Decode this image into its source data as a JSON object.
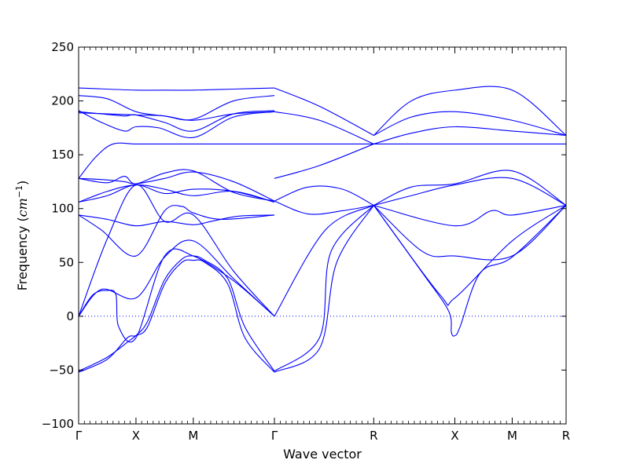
{
  "chart_data": {
    "type": "line",
    "xlabel": "Wave vector",
    "ylabel_main": "Frequency (",
    "ylabel_unit": "cm",
    "ylabel_exp": "−1",
    "ylabel_close": ")",
    "ylim": [
      -100,
      250
    ],
    "yticks": [
      -100,
      -50,
      0,
      50,
      100,
      150,
      200,
      250
    ],
    "ytick_labels": [
      "−100",
      "−50",
      "0",
      "50",
      "100",
      "150",
      "200",
      "250"
    ],
    "grid": false,
    "zero_line": true,
    "line_color": "#0000ff",
    "zero_line_color": "#0000ff",
    "xlim": [
      0,
      8.5
    ],
    "x_ticks": [
      {
        "x": 0,
        "label": "Γ"
      },
      {
        "x": 1,
        "label": "X"
      },
      {
        "x": 2,
        "label": "M"
      },
      {
        "x": 3.414,
        "label": "Γ"
      },
      {
        "x": 5.146,
        "label": "R"
      },
      {
        "x": 6.56,
        "label": "X"
      },
      {
        "x": 7.56,
        "label": "M"
      },
      {
        "x": 8.5,
        "label": "R"
      }
    ],
    "series": [
      {
        "x": [
          0,
          0.5,
          1,
          1.5,
          2,
          2.7,
          3.414
        ],
        "y": [
          212,
          211,
          210,
          210,
          210,
          211,
          212
        ]
      },
      {
        "x": [
          0,
          0.5,
          1,
          1.5,
          2,
          2.7,
          3.414
        ],
        "y": [
          205,
          202,
          190,
          186,
          183,
          200,
          205
        ]
      },
      {
        "x": [
          0,
          0.4,
          0.8,
          1,
          1.4,
          2,
          2.7,
          3.414
        ],
        "y": [
          191,
          180,
          172,
          176,
          175,
          166,
          185,
          190
        ]
      },
      {
        "x": [
          0,
          0.4,
          0.8,
          1,
          1.5,
          2,
          2.7,
          3.414
        ],
        "y": [
          190,
          188,
          186,
          187,
          180,
          172,
          188,
          191
        ]
      },
      {
        "x": [
          0,
          0.5,
          1,
          1.5,
          2,
          2.7,
          3.414
        ],
        "y": [
          189,
          188,
          187,
          186,
          182,
          188,
          190
        ]
      },
      {
        "x": [
          0,
          0.3,
          0.6,
          1,
          1.5,
          2,
          3.414
        ],
        "y": [
          128,
          148,
          160,
          160,
          160,
          160,
          160
        ]
      },
      {
        "x": [
          0,
          0.4,
          0.8,
          1,
          1.5,
          2,
          2.7,
          3.414
        ],
        "y": [
          128,
          127,
          125,
          123,
          128,
          134,
          125,
          107
        ]
      },
      {
        "x": [
          0,
          0.5,
          0.8,
          1,
          1.5,
          2,
          2.7,
          3.414
        ],
        "y": [
          128,
          124,
          130,
          123,
          133,
          135,
          115,
          107
        ]
      },
      {
        "x": [
          0,
          0.5,
          1,
          1.5,
          2,
          2.7,
          3.414
        ],
        "y": [
          106,
          112,
          122,
          114,
          118,
          116,
          106
        ]
      },
      {
        "x": [
          0,
          0.5,
          1,
          1.5,
          2,
          2.7,
          3.414
        ],
        "y": [
          106,
          116,
          122,
          118,
          112,
          116,
          106
        ]
      },
      {
        "x": [
          0,
          0.5,
          1,
          1.5,
          2,
          2.3,
          2.8,
          3.414
        ],
        "y": [
          94,
          90,
          84,
          88,
          85,
          88,
          93,
          94
        ]
      },
      {
        "x": [
          0,
          0.4,
          1,
          1.5,
          1.8,
          2,
          2.5,
          3.414
        ],
        "y": [
          94,
          80,
          56,
          98,
          102,
          96,
          90,
          94
        ]
      },
      {
        "x": [
          0,
          0.5,
          1,
          1.5,
          2,
          2.7,
          3.414
        ],
        "y": [
          0,
          72,
          122,
          88,
          94,
          42,
          0
        ]
      },
      {
        "x": [
          0,
          0.4,
          1,
          1.5,
          2,
          2.7,
          3.414
        ],
        "y": [
          0,
          25,
          17,
          55,
          70,
          35,
          0
        ]
      },
      {
        "x": [
          0,
          0.25,
          0.5,
          0.65,
          0.7,
          1,
          1.5,
          2,
          2.7,
          3.414
        ],
        "y": [
          0,
          20,
          24,
          20,
          -10,
          -20,
          56,
          56,
          33,
          0
        ]
      },
      {
        "x": [
          0,
          0.5,
          0.85,
          1,
          1.2,
          1.5,
          1.8,
          2,
          2.2,
          2.6,
          2.9,
          3.414
        ],
        "y": [
          -52,
          -40,
          -20,
          -18,
          -10,
          30,
          50,
          52,
          50,
          30,
          -20,
          -52
        ]
      },
      {
        "x": [
          0,
          0.5,
          0.9,
          1,
          1.2,
          1.5,
          1.8,
          2,
          2.2,
          2.6,
          2.9,
          3.414
        ],
        "y": [
          -51,
          -38,
          -22,
          -18,
          -5,
          34,
          53,
          56,
          52,
          35,
          -10,
          -51
        ]
      },
      {
        "x": [
          3.414,
          4.2,
          4.5,
          5.146
        ],
        "y": [
          -52,
          -30,
          50,
          103
        ]
      },
      {
        "x": [
          3.414,
          4.2,
          4.4,
          5.146
        ],
        "y": [
          -51,
          -20,
          60,
          103
        ]
      },
      {
        "x": [
          3.414,
          4.3,
          5.146
        ],
        "y": [
          0,
          80,
          103
        ]
      },
      {
        "x": [
          3.414,
          4.0,
          4.6,
          5.146
        ],
        "y": [
          107,
          120,
          118,
          103
        ]
      },
      {
        "x": [
          3.414,
          4.0,
          4.6,
          5.146
        ],
        "y": [
          107,
          95,
          98,
          103
        ]
      },
      {
        "x": [
          3.414,
          4.2,
          5.146
        ],
        "y": [
          128,
          140,
          160
        ]
      },
      {
        "x": [
          3.414,
          4.2,
          5.146
        ],
        "y": [
          190,
          182,
          160
        ]
      },
      {
        "x": [
          3.414,
          4.2,
          5.146
        ],
        "y": [
          212,
          195,
          168
        ]
      },
      {
        "x": [
          3.414,
          4.2,
          5.146
        ],
        "y": [
          160,
          160,
          160
        ]
      },
      {
        "x": [
          5.146,
          5.8,
          6.56,
          7.56,
          8.5
        ],
        "y": [
          168,
          200,
          210,
          210,
          168
        ]
      },
      {
        "x": [
          5.146,
          5.8,
          6.56,
          7.56,
          8.5
        ],
        "y": [
          168,
          185,
          190,
          182,
          168
        ]
      },
      {
        "x": [
          5.146,
          5.8,
          6.56,
          7.56,
          8.5
        ],
        "y": [
          160,
          170,
          176,
          172,
          168
        ]
      },
      {
        "x": [
          5.146,
          6.56,
          7.56,
          8.5
        ],
        "y": [
          160,
          160,
          160,
          160
        ]
      },
      {
        "x": [
          5.146,
          5.8,
          6.56,
          7.56,
          8.5
        ],
        "y": [
          103,
          120,
          123,
          135,
          103
        ]
      },
      {
        "x": [
          5.146,
          5.8,
          6.56,
          7.56,
          8.5
        ],
        "y": [
          103,
          112,
          122,
          128,
          103
        ]
      },
      {
        "x": [
          5.146,
          6.56,
          7.2,
          7.56,
          8.5
        ],
        "y": [
          103,
          84,
          98,
          94,
          103
        ]
      },
      {
        "x": [
          5.146,
          6.0,
          6.56,
          7.56,
          8.5
        ],
        "y": [
          103,
          60,
          56,
          56,
          103
        ]
      },
      {
        "x": [
          5.146,
          6.0,
          6.45,
          6.5,
          6.56,
          6.65,
          7.0,
          7.56,
          8.5
        ],
        "y": [
          103,
          40,
          5,
          -15,
          -18,
          -10,
          40,
          55,
          103
        ]
      },
      {
        "x": [
          5.146,
          6.3,
          6.56,
          7.56,
          8.5
        ],
        "y": [
          103,
          20,
          17,
          70,
          103
        ]
      }
    ]
  }
}
